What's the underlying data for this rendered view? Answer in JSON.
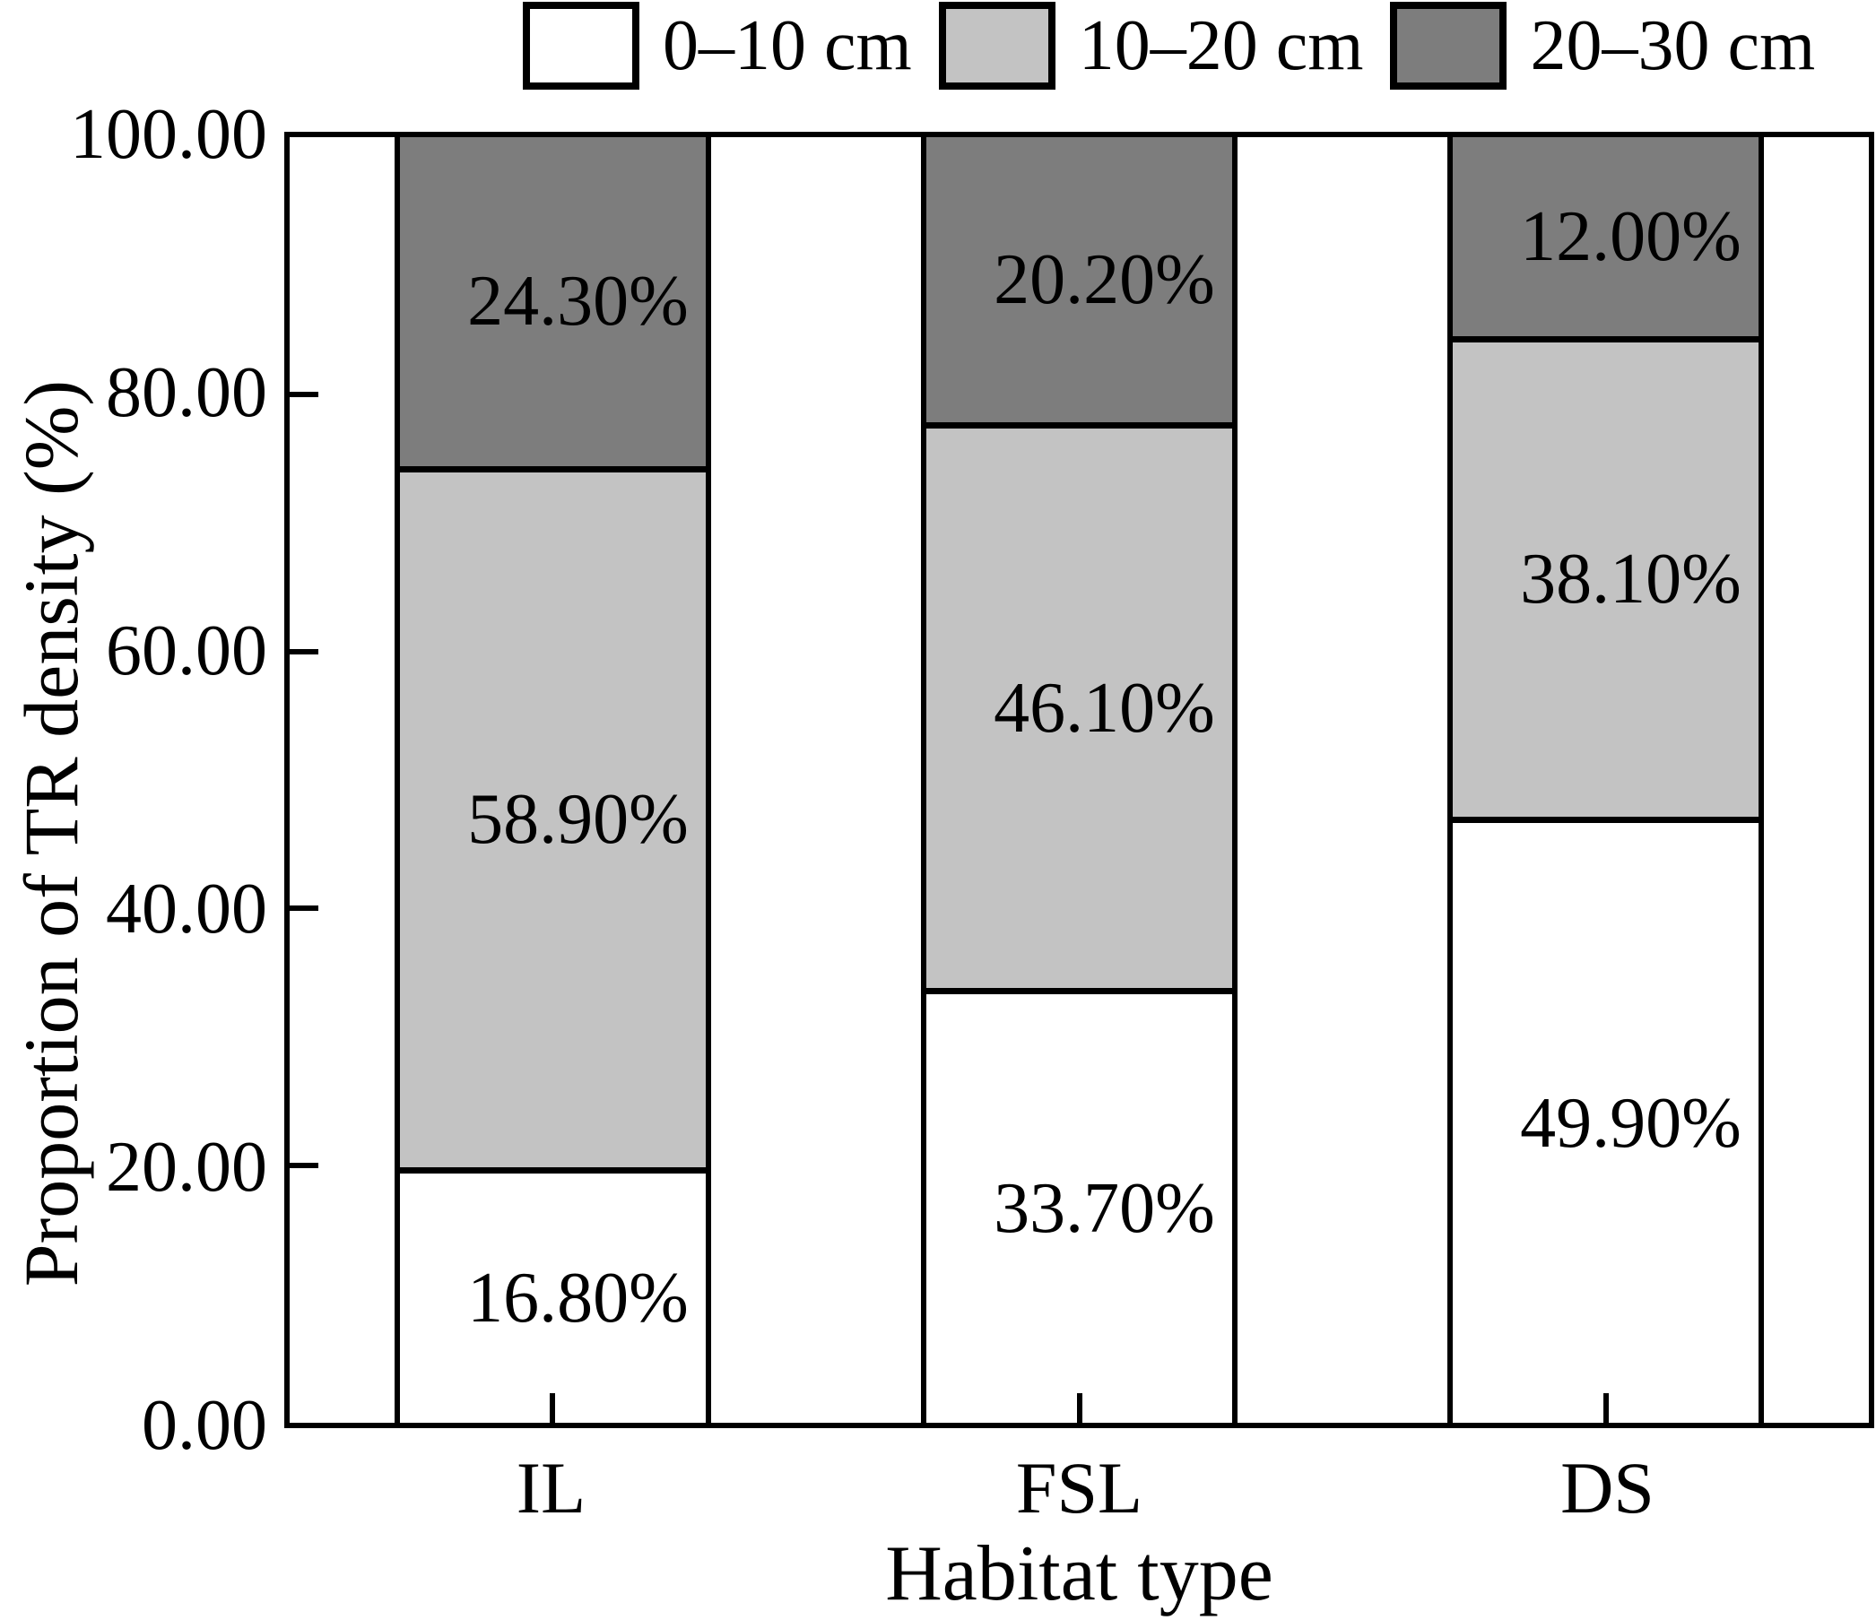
{
  "figure": {
    "background": "#ffffff",
    "text_color": "#000000",
    "frame_color": "#000000"
  },
  "legend": {
    "position": "top",
    "swatch_border_color": "#000000"
  },
  "axes": {
    "y_title": "Proportion of TR density (%)",
    "x_title": "Habitat type",
    "y_tick_labels": [
      "100.00",
      "80.00",
      "60.00",
      "40.00",
      "20.00",
      "0.00"
    ],
    "y_tick_values": [
      100,
      80,
      60,
      40,
      20,
      0
    ]
  },
  "chart_data": {
    "type": "bar",
    "stacked": true,
    "orientation": "vertical",
    "title": "",
    "xlabel": "Habitat type",
    "ylabel": "Proportion of TR density (%)",
    "ylim": [
      0,
      100
    ],
    "ytick_step": 20,
    "grid": false,
    "legend_position": "top",
    "categories": [
      "IL",
      "FSL",
      "DS"
    ],
    "series": [
      {
        "name": "0–10 cm",
        "color": "#ffffff",
        "values": [
          16.8,
          33.7,
          49.9
        ],
        "labels": [
          "16.80%",
          "33.70%",
          "49.90%"
        ]
      },
      {
        "name": "10–20 cm",
        "color": "#c3c3c3",
        "values": [
          58.9,
          46.1,
          38.1
        ],
        "labels": [
          "58.90%",
          "46.10%",
          "38.10%"
        ]
      },
      {
        "name": "20–30 cm",
        "color": "#7d7d7d",
        "values": [
          24.3,
          20.2,
          12.0
        ],
        "labels": [
          "24.30%",
          "20.20%",
          "12.00%"
        ]
      }
    ]
  }
}
